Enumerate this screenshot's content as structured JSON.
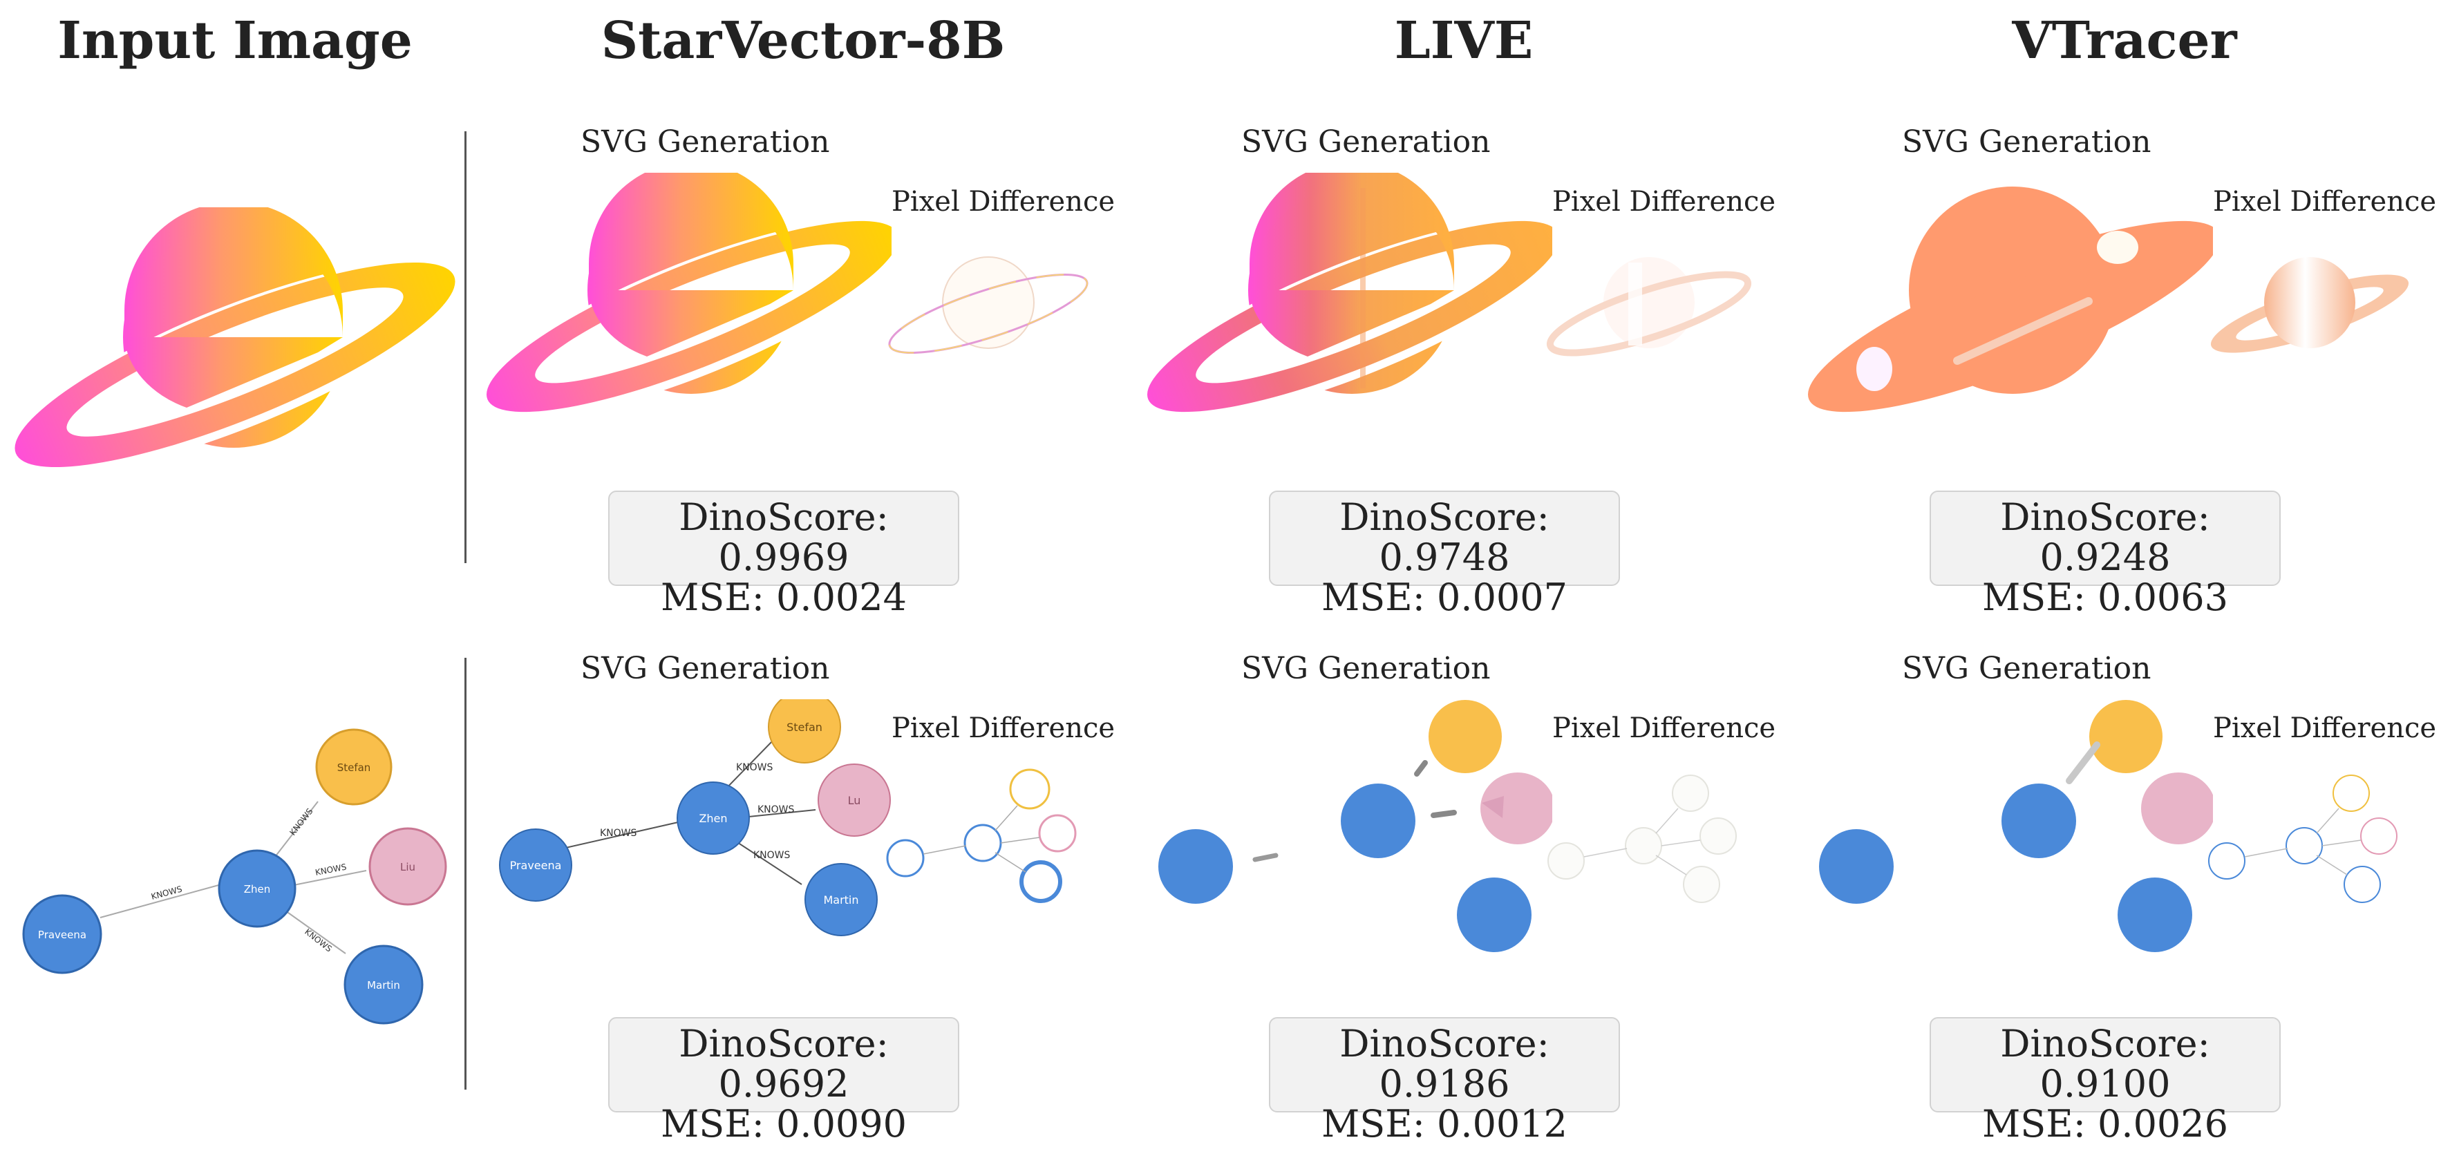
{
  "columns": [
    "Input Image",
    "StarVector-8B",
    "LIVE",
    "VTracer"
  ],
  "labels": {
    "svg_generation": "SVG Generation",
    "pixel_difference": "Pixel Difference"
  },
  "graph_nodes": {
    "stefan": "Stefan",
    "liu": "Liu",
    "zhen": "Zhen",
    "praveena": "Praveena",
    "martin": "Martin",
    "lu": "Lu"
  },
  "edge_label": "KNOWS",
  "rows": [
    {
      "subject": "planet",
      "results": [
        {
          "method": "StarVector-8B",
          "dino": "DinoScore: 0.9969",
          "mse": "MSE: 0.0024"
        },
        {
          "method": "LIVE",
          "dino": "DinoScore: 0.9748",
          "mse": "MSE: 0.0007"
        },
        {
          "method": "VTracer",
          "dino": "DinoScore: 0.9248",
          "mse": "MSE: 0.0063"
        }
      ]
    },
    {
      "subject": "graph",
      "results": [
        {
          "method": "StarVector-8B",
          "dino": "DinoScore: 0.9692",
          "mse": "MSE: 0.0090"
        },
        {
          "method": "LIVE",
          "dino": "DinoScore: 0.9186",
          "mse": "MSE: 0.0012"
        },
        {
          "method": "VTracer",
          "dino": "DinoScore: 0.9100",
          "mse": "MSE: 0.0026"
        }
      ]
    }
  ],
  "colors": {
    "planet_pink": "#ff4fd8",
    "planet_orange": "#ff9a6a",
    "planet_yellow": "#ffd400",
    "node_blue": "#4a89d9",
    "node_yellow": "#f9bf4b",
    "node_pink": "#e8b4c8"
  }
}
